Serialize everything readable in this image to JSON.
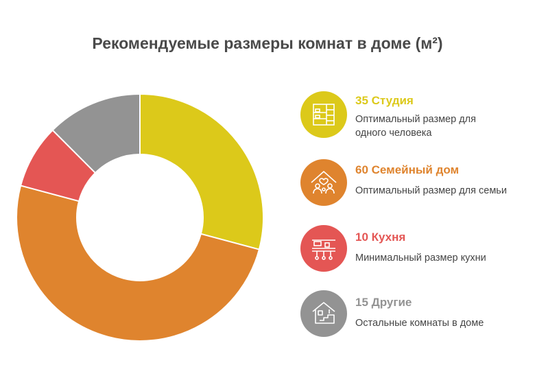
{
  "chart_data": {
    "type": "pie",
    "title": "Рекомендуемые размеры комнат в доме (м²)",
    "categories": [
      "Студия",
      "Семейный дом",
      "Кухня",
      "Другие"
    ],
    "values": [
      35,
      60,
      10,
      15
    ],
    "colors": [
      "#dcc91a",
      "#df842e",
      "#e45654",
      "#939393"
    ],
    "descriptions": [
      "Оптимальный размер для одного человека",
      "Оптимальный размер для семьи",
      "Минимальный размер кухни",
      "Остальные комнаты в доме"
    ],
    "legend_labels": [
      "35 Студия",
      "60 Семейный дом",
      "10 Кухня",
      "15 Другие"
    ],
    "icons": [
      "bunk-bed-icon",
      "family-house-icon",
      "kitchen-shelf-icon",
      "house-stairs-icon"
    ],
    "legend_position": "right"
  }
}
